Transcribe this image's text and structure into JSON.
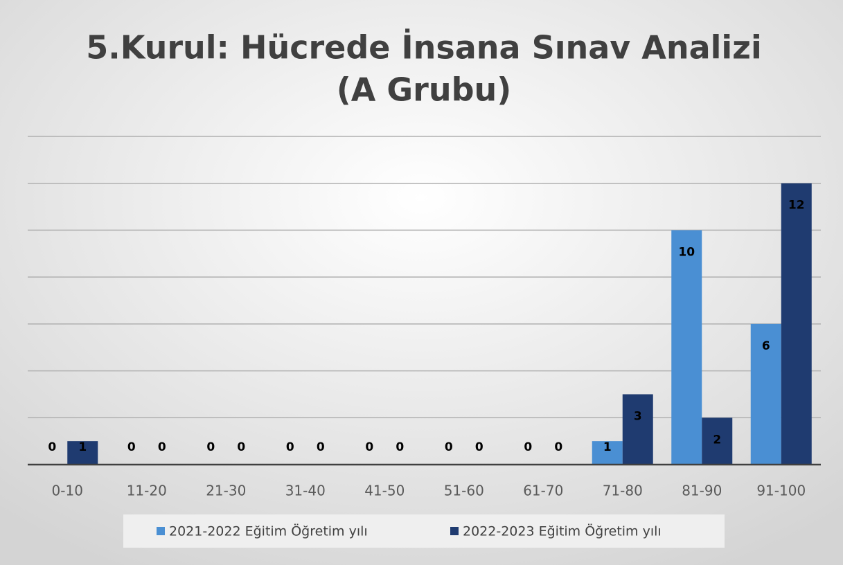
{
  "chart_data": {
    "type": "bar",
    "title": "5.Kurul: Hücrede İnsana Sınav Analizi",
    "subtitle": "(A Grubu)",
    "categories": [
      "0-10",
      "11-20",
      "21-30",
      "31-40",
      "41-50",
      "51-60",
      "61-70",
      "71-80",
      "81-90",
      "91-100"
    ],
    "series": [
      {
        "name": "2021-2022 Eğitim Öğretim yılı",
        "color": "#4a8fd3",
        "values": [
          0,
          0,
          0,
          0,
          0,
          0,
          0,
          1,
          10,
          6
        ]
      },
      {
        "name": "2022-2023 Eğitim Öğretim yılı",
        "color": "#1f3b70",
        "values": [
          1,
          0,
          0,
          0,
          0,
          0,
          0,
          3,
          2,
          12
        ]
      }
    ],
    "ylim": [
      0,
      14
    ],
    "yticks": [
      0,
      2,
      4,
      6,
      8,
      10,
      12,
      14
    ],
    "grid": true,
    "legend": "bottom"
  }
}
